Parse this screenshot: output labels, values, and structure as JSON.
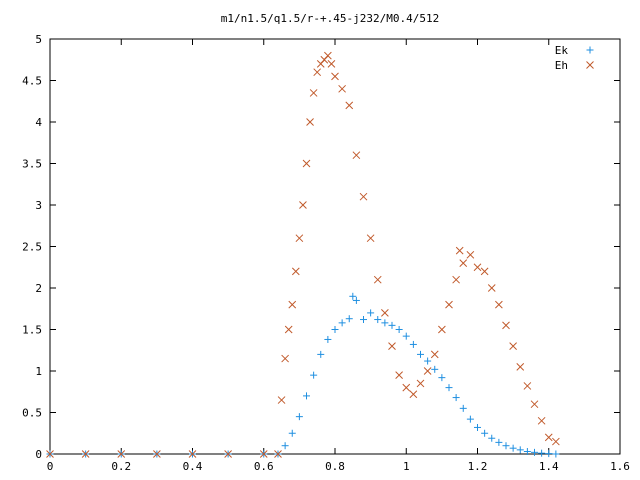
{
  "chart_data": {
    "type": "scatter",
    "title": "m1/n1.5/q1.5/r-+.45-j232/M0.4/512",
    "xlabel": "",
    "ylabel": "",
    "xlim": [
      0,
      1.6
    ],
    "ylim": [
      0,
      5
    ],
    "x_ticks": [
      "0",
      "0.2",
      "0.4",
      "0.6",
      "0.8",
      "1",
      "1.2",
      "1.4",
      "1.6"
    ],
    "y_ticks": [
      "0",
      "0.5",
      "1",
      "1.5",
      "2",
      "2.5",
      "3",
      "3.5",
      "4",
      "4.5",
      "5"
    ],
    "grid": false,
    "legend_position": "top-right",
    "colors": {
      "Ek": "#1f8fe0",
      "Eh": "#c0592a"
    },
    "series": [
      {
        "name": "Ek",
        "marker": "plus",
        "points": [
          [
            0.0,
            0
          ],
          [
            0.1,
            0
          ],
          [
            0.2,
            0
          ],
          [
            0.3,
            0
          ],
          [
            0.4,
            0
          ],
          [
            0.5,
            0
          ],
          [
            0.6,
            0
          ],
          [
            0.64,
            0
          ],
          [
            0.66,
            0.1
          ],
          [
            0.68,
            0.25
          ],
          [
            0.7,
            0.45
          ],
          [
            0.72,
            0.7
          ],
          [
            0.74,
            0.95
          ],
          [
            0.76,
            1.2
          ],
          [
            0.78,
            1.38
          ],
          [
            0.8,
            1.5
          ],
          [
            0.82,
            1.58
          ],
          [
            0.84,
            1.63
          ],
          [
            0.85,
            1.9
          ],
          [
            0.86,
            1.85
          ],
          [
            0.88,
            1.62
          ],
          [
            0.9,
            1.7
          ],
          [
            0.92,
            1.62
          ],
          [
            0.94,
            1.58
          ],
          [
            0.96,
            1.55
          ],
          [
            0.98,
            1.5
          ],
          [
            1.0,
            1.42
          ],
          [
            1.02,
            1.32
          ],
          [
            1.04,
            1.2
          ],
          [
            1.06,
            1.12
          ],
          [
            1.08,
            1.02
          ],
          [
            1.1,
            0.92
          ],
          [
            1.12,
            0.8
          ],
          [
            1.14,
            0.68
          ],
          [
            1.16,
            0.55
          ],
          [
            1.18,
            0.42
          ],
          [
            1.2,
            0.32
          ],
          [
            1.22,
            0.25
          ],
          [
            1.24,
            0.19
          ],
          [
            1.26,
            0.14
          ],
          [
            1.28,
            0.1
          ],
          [
            1.3,
            0.07
          ],
          [
            1.32,
            0.05
          ],
          [
            1.34,
            0.03
          ],
          [
            1.36,
            0.02
          ],
          [
            1.38,
            0.01
          ],
          [
            1.4,
            0.005
          ],
          [
            1.42,
            0
          ]
        ]
      },
      {
        "name": "Eh",
        "marker": "cross",
        "points": [
          [
            0.0,
            0
          ],
          [
            0.1,
            0
          ],
          [
            0.2,
            0
          ],
          [
            0.3,
            0
          ],
          [
            0.4,
            0
          ],
          [
            0.5,
            0
          ],
          [
            0.6,
            0
          ],
          [
            0.64,
            0
          ],
          [
            0.65,
            0.65
          ],
          [
            0.66,
            1.15
          ],
          [
            0.67,
            1.5
          ],
          [
            0.68,
            1.8
          ],
          [
            0.69,
            2.2
          ],
          [
            0.7,
            2.6
          ],
          [
            0.71,
            3.0
          ],
          [
            0.72,
            3.5
          ],
          [
            0.73,
            4.0
          ],
          [
            0.74,
            4.35
          ],
          [
            0.75,
            4.6
          ],
          [
            0.76,
            4.7
          ],
          [
            0.77,
            4.75
          ],
          [
            0.78,
            4.8
          ],
          [
            0.79,
            4.7
          ],
          [
            0.8,
            4.55
          ],
          [
            0.82,
            4.4
          ],
          [
            0.84,
            4.2
          ],
          [
            0.86,
            3.6
          ],
          [
            0.88,
            3.1
          ],
          [
            0.9,
            2.6
          ],
          [
            0.92,
            2.1
          ],
          [
            0.94,
            1.7
          ],
          [
            0.96,
            1.3
          ],
          [
            0.98,
            0.95
          ],
          [
            1.0,
            0.8
          ],
          [
            1.02,
            0.72
          ],
          [
            1.04,
            0.85
          ],
          [
            1.06,
            1.0
          ],
          [
            1.08,
            1.2
          ],
          [
            1.1,
            1.5
          ],
          [
            1.12,
            1.8
          ],
          [
            1.14,
            2.1
          ],
          [
            1.15,
            2.45
          ],
          [
            1.16,
            2.3
          ],
          [
            1.18,
            2.4
          ],
          [
            1.2,
            2.25
          ],
          [
            1.22,
            2.2
          ],
          [
            1.24,
            2.0
          ],
          [
            1.26,
            1.8
          ],
          [
            1.28,
            1.55
          ],
          [
            1.3,
            1.3
          ],
          [
            1.32,
            1.05
          ],
          [
            1.34,
            0.82
          ],
          [
            1.36,
            0.6
          ],
          [
            1.38,
            0.4
          ],
          [
            1.4,
            0.2
          ],
          [
            1.42,
            0.15
          ]
        ]
      }
    ]
  }
}
